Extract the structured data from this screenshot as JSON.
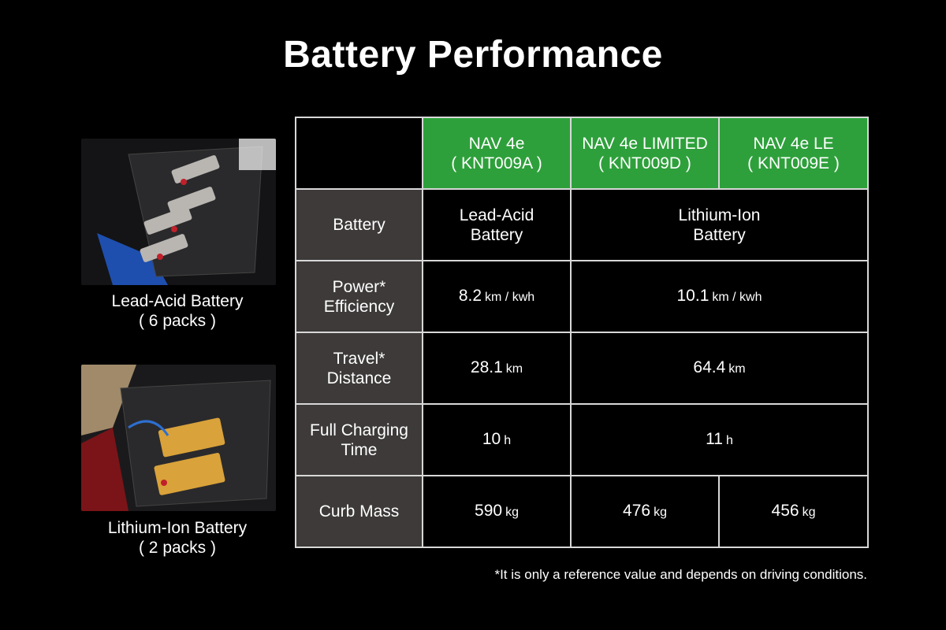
{
  "title": "Battery Performance",
  "colors": {
    "header_green": "#2ea03b",
    "label_gray": "#3d3a39",
    "background": "#000000"
  },
  "photos": [
    {
      "caption_line1": "Lead-Acid Battery",
      "caption_line2": "( 6 packs )"
    },
    {
      "caption_line1": "Lithium-Ion Battery",
      "caption_line2": "( 2 packs )"
    }
  ],
  "table": {
    "models": [
      {
        "name": "NAV 4e",
        "code": "( KNT009A )"
      },
      {
        "name": "NAV 4e LIMITED",
        "code": "( KNT009D )"
      },
      {
        "name": "NAV 4e LE",
        "code": "( KNT009E )"
      }
    ],
    "rows": {
      "battery": {
        "label1": "Battery",
        "a1": "Lead-Acid",
        "a2": "Battery",
        "b1": "Lithium-Ion",
        "b2": "Battery"
      },
      "efficiency": {
        "label1": "Power*",
        "label2": "Efficiency",
        "a": "8.2",
        "b": "10.1",
        "unit": "km / kwh"
      },
      "distance": {
        "label1": "Travel*",
        "label2": "Distance",
        "a": "28.1",
        "b": "64.4",
        "unit": "km"
      },
      "charging": {
        "label1": "Full Charging",
        "label2": "Time",
        "a": "10",
        "b": "11",
        "unit": "h"
      },
      "mass": {
        "label1": "Curb Mass",
        "a": "590",
        "b": "476",
        "c": "456",
        "unit": "kg"
      }
    }
  },
  "footnote": "*It is only a reference value and depends on driving conditions."
}
